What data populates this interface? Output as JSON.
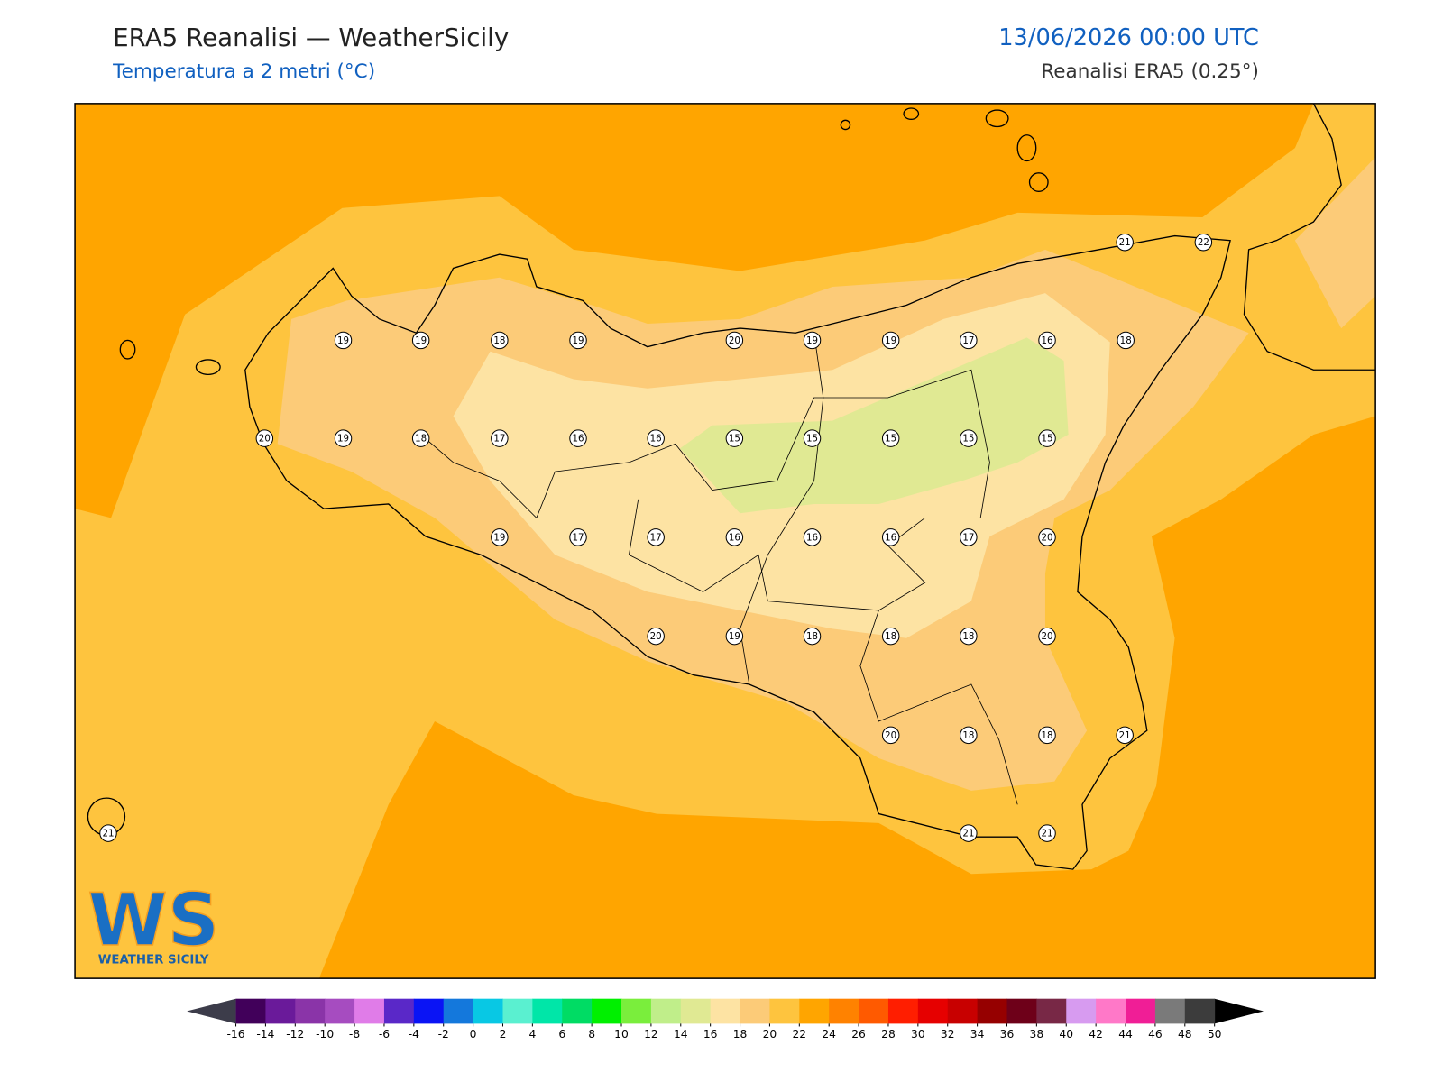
{
  "header": {
    "title": "ERA5 Reanalisi — WeatherSicily",
    "subtitle": "Temperatura a 2 metri (°C)",
    "datetime": "13/06/2026 00:00 UTC",
    "source": "Reanalisi ERA5 (0.25°)"
  },
  "stations": [
    21,
    22,
    19,
    19,
    18,
    19,
    20,
    19,
    19,
    17,
    16,
    18,
    20,
    19,
    18,
    17,
    16,
    16,
    15,
    15,
    15,
    15,
    15,
    19,
    17,
    17,
    16,
    16,
    16,
    17,
    20,
    20,
    19,
    18,
    18,
    18,
    20,
    20,
    18,
    18,
    21,
    21,
    21,
    21
  ],
  "colorbar": {
    "ticks": [
      -16,
      -14,
      -12,
      -10,
      -8,
      -6,
      -4,
      -2,
      0,
      2,
      4,
      6,
      8,
      10,
      12,
      14,
      16,
      18,
      20,
      22,
      24,
      26,
      28,
      30,
      32,
      34,
      36,
      38,
      40,
      42,
      44,
      46,
      48,
      50
    ],
    "colors": [
      "#41005a",
      "#6a1a9a",
      "#8a34a8",
      "#a64cc0",
      "#e07ce8",
      "#5a28c8",
      "#0a14f5",
      "#1478dc",
      "#08c8e4",
      "#5af0d0",
      "#00e6a8",
      "#00dc64",
      "#00f000",
      "#7aee3c",
      "#c0ee8a",
      "#e0e993",
      "#fde3a3",
      "#fccb78",
      "#fec43e",
      "#ffa500",
      "#ff8200",
      "#ff5a00",
      "#ff1e00",
      "#e60000",
      "#c80000",
      "#960000",
      "#6e0019",
      "#782846",
      "#d79bf0",
      "#ff78c8",
      "#f01e96",
      "#7a7a7a",
      "#3c3c3c"
    ],
    "under_color": "#3c3c4a",
    "over_color": "#000000"
  },
  "logo": {
    "mark": "WS",
    "name": "WEATHER SICILY"
  }
}
